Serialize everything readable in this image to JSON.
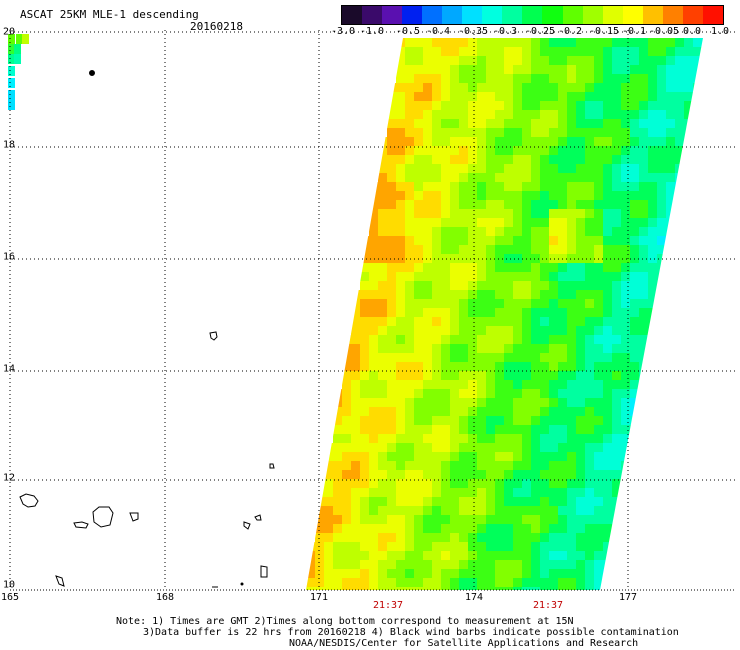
{
  "header": {
    "title": "ASCAT 25KM MLE-1 descending",
    "date": "20160218"
  },
  "colorbar": {
    "colors": [
      "#1a0a2a",
      "#3a0a6a",
      "#5a10b0",
      "#0020f0",
      "#0070ff",
      "#00a8ff",
      "#00e0ff",
      "#00ffe0",
      "#00ffa0",
      "#00ff50",
      "#10ff10",
      "#60ff00",
      "#a0ff00",
      "#e0ff00",
      "#ffff00",
      "#ffc000",
      "#ff8000",
      "#ff4000",
      "#ff1000"
    ],
    "tick_labels": [
      "-3.0",
      "-1.0",
      "-0.5",
      "-0.4",
      "-0.35",
      "-0.3",
      "-0.25",
      "-0.2",
      "-0.15",
      "-0.1",
      "-0.05",
      "0.0",
      "1.0"
    ]
  },
  "axes": {
    "lon_labels": [
      "165",
      "168",
      "171",
      "174",
      "177"
    ],
    "lat_labels": [
      "20",
      "18",
      "16",
      "14",
      "12",
      "10"
    ],
    "time_labels": [
      "21:37",
      "21:37"
    ]
  },
  "note": {
    "line1": "Note: 1) Times are GMT 2)Times along bottom correspond to measurement at 15N",
    "line2": "3)Data buffer is 22 hrs from 20160218 4) Black wind barbs indicate possible contamination",
    "line3": "NOAA/NESDIS/Center for Satellite Applications and Research"
  },
  "colors": {
    "grid": "#000000",
    "coast": "#000000",
    "time_label": "#c00000"
  }
}
